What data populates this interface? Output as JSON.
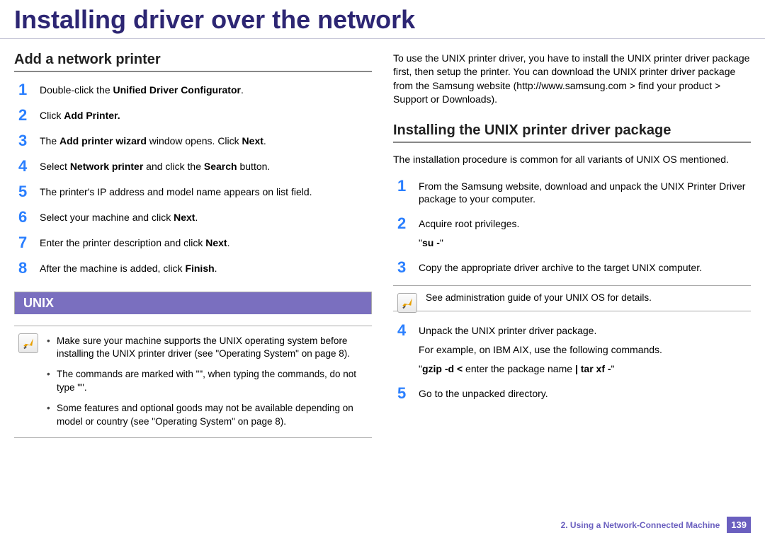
{
  "title": "Installing driver over the network",
  "colors": {
    "title": "#2d2673",
    "step_number": "#2a7fff",
    "unix_bar_bg": "#7a6fbf",
    "footer_accent": "#6a5fbf"
  },
  "left": {
    "heading": "Add a network printer",
    "steps": [
      {
        "n": "1",
        "html": "Double-click the <b>Unified Driver Configurator</b>."
      },
      {
        "n": "2",
        "html": "Click <b>Add Printer.</b>"
      },
      {
        "n": "3",
        "html": "The <b>Add printer wizard</b> window opens. Click <b>Next</b>."
      },
      {
        "n": "4",
        "html": "Select <b>Network printer</b> and click the <b>Search</b> button."
      },
      {
        "n": "5",
        "html": "The printer's IP address and model name appears on list field."
      },
      {
        "n": "6",
        "html": "Select your machine and click <b>Next</b>."
      },
      {
        "n": "7",
        "html": "Enter the printer description and click <b>Next</b>."
      },
      {
        "n": "8",
        "html": "After the machine is added, click <b>Finish</b>."
      }
    ],
    "unix_label": "UNIX",
    "note_bullets": [
      "Make sure your machine supports the UNIX operating system before installing the UNIX printer driver (see \"Operating System\" on page 8).",
      "The commands are marked with \"\", when typing the commands, do not type \"\".",
      "Some features and optional goods may not be available depending on model or country (see \"Operating System\" on page 8)."
    ]
  },
  "right": {
    "intro": "To use the UNIX printer driver, you have to install the UNIX printer driver package first, then setup the printer. You can download the UNIX printer driver package from the Samsung website (http://www.samsung.com > find your product > Support or Downloads).",
    "heading": "Installing the UNIX printer driver package",
    "intro2": "The installation procedure is common for all variants of UNIX OS mentioned.",
    "steps_a": [
      {
        "n": "1",
        "html": "From the Samsung website, download and unpack the UNIX Printer Driver package to your computer."
      },
      {
        "n": "2",
        "html": "Acquire root privileges.<div class=\"sub-line\">\"<b>su -</b>\"</div>"
      },
      {
        "n": "3",
        "html": "Copy the appropriate driver archive to the target UNIX computer."
      }
    ],
    "note": "See administration guide of your UNIX OS for details.",
    "steps_b": [
      {
        "n": "4",
        "html": "Unpack the UNIX printer driver package.<div class=\"sub-line\">For example, on IBM AIX, use the following commands.</div><div class=\"sub-line\">\"<b>gzip -d &lt;</b> enter the package name <b>| tar xf -</b>\"</div>"
      },
      {
        "n": "5",
        "html": "Go to the unpacked directory."
      }
    ]
  },
  "footer": {
    "chapter": "2.  Using a Network-Connected Machine",
    "page": "139"
  }
}
